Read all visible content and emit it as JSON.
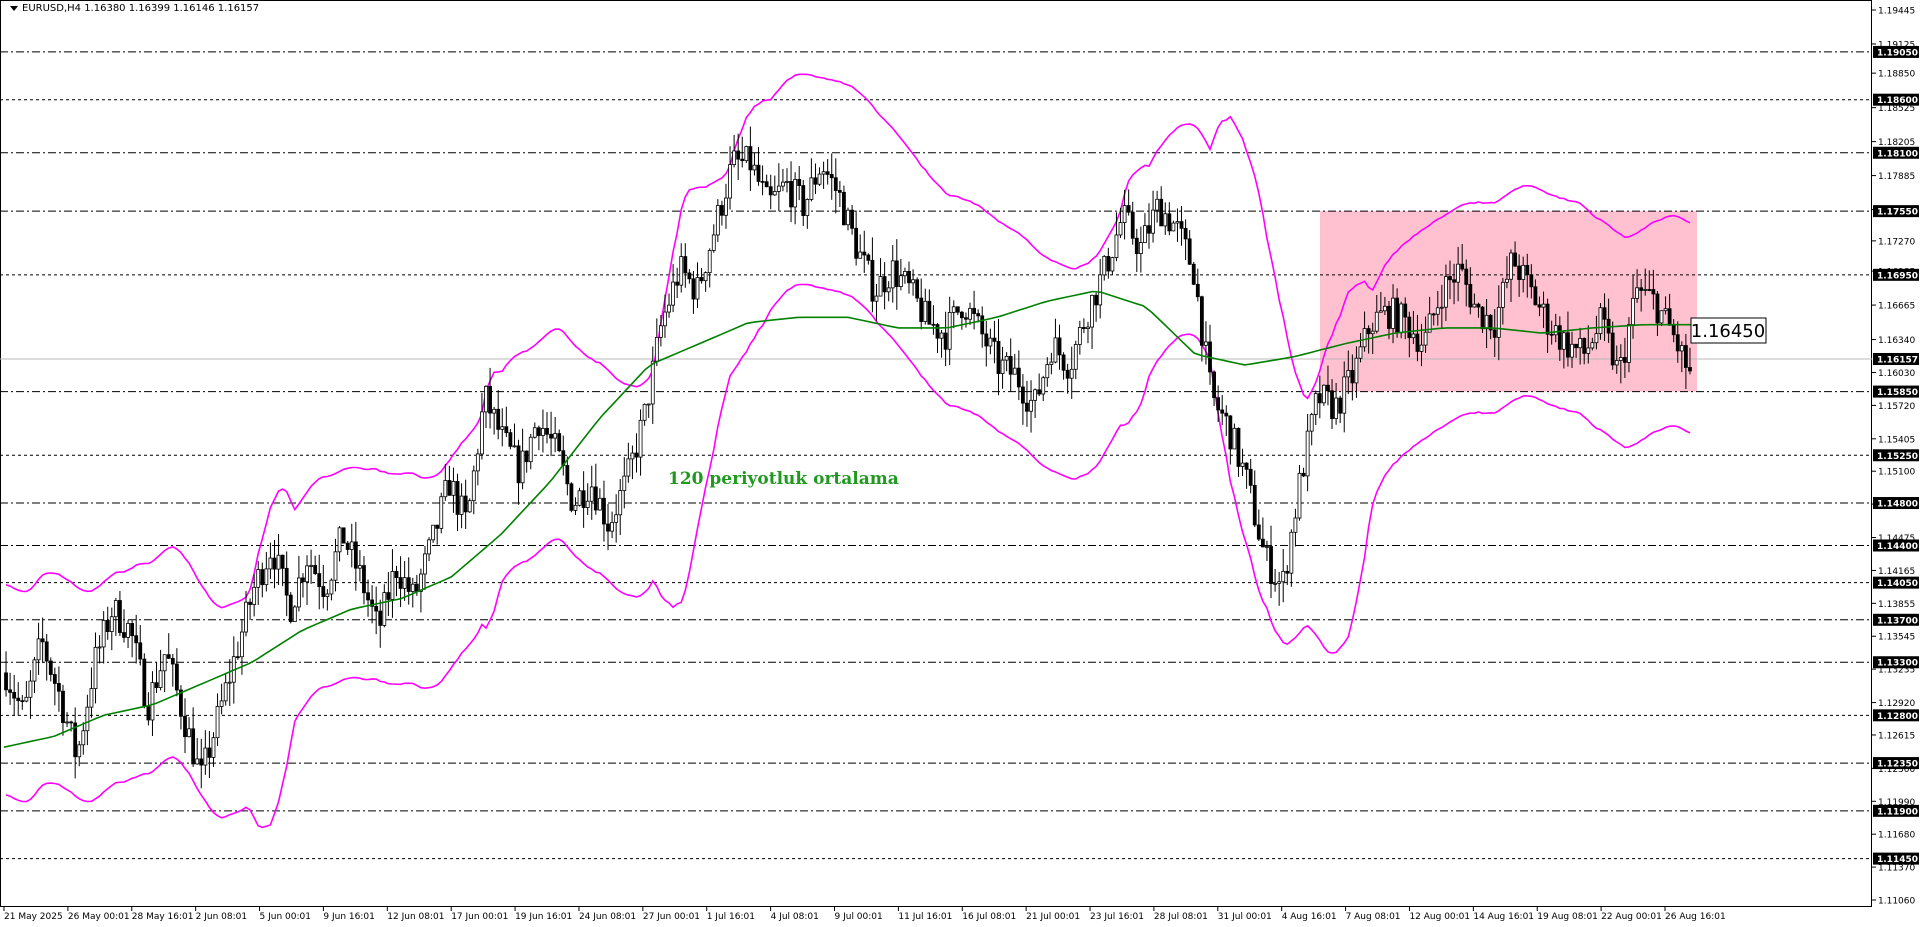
{
  "header": {
    "symbol_line": "EURUSD,H4  1.16380 1.16399 1.16146 1.16157"
  },
  "annotations": {
    "ma_label": "120 periyotluk ortalama",
    "price_callout": "1.16450"
  },
  "colors": {
    "background": "#ffffff",
    "candles": "#000000",
    "bollinger": "#ff00ff",
    "moving_average": "#008000",
    "range_box": "#ffb6c8",
    "level_lines": "#000000"
  },
  "chart_data": {
    "type": "candlestick",
    "symbol": "EURUSD",
    "timeframe": "H4",
    "ohlc_last": {
      "open": 1.1638,
      "high": 1.16399,
      "low": 1.16146,
      "close": 1.16157
    },
    "ylim": [
      1.1106,
      1.19445
    ],
    "y_ticks": [
      "1.19445",
      "1.19125",
      "1.18850",
      "1.18525",
      "1.18205",
      "1.17885",
      "1.17565",
      "1.17270",
      "1.16985",
      "1.16665",
      "1.16340",
      "1.16030",
      "1.15720",
      "1.15405",
      "1.15100",
      "1.14790",
      "1.14475",
      "1.14165",
      "1.13855",
      "1.13545",
      "1.13235",
      "1.12920",
      "1.12615",
      "1.12300",
      "1.11990",
      "1.11680",
      "1.11370",
      "1.11060"
    ],
    "horizontal_levels": [
      "1.19050",
      "1.18600",
      "1.18100",
      "1.17550",
      "1.16950",
      "1.16157",
      "1.15850",
      "1.15250",
      "1.14800",
      "1.14400",
      "1.14050",
      "1.13700",
      "1.13300",
      "1.12800",
      "1.12350",
      "1.11900",
      "1.11450"
    ],
    "current_price": "1.16157",
    "x_ticks": [
      "21 May 2025",
      "26 May 00:01",
      "28 May 16:01",
      "2 Jun 08:01",
      "5 Jun 00:01",
      "9 Jun 16:01",
      "12 Jun 08:01",
      "17 Jun 00:01",
      "19 Jun 16:01",
      "24 Jun 08:01",
      "27 Jun 00:01",
      "1 Jul 16:01",
      "4 Jul 08:01",
      "9 Jul 00:01",
      "11 Jul 16:01",
      "16 Jul 08:01",
      "21 Jul 00:01",
      "23 Jul 16:01",
      "28 Jul 08:01",
      "31 Jul 00:01",
      "4 Aug 16:01",
      "7 Aug 08:01",
      "12 Aug 00:01",
      "14 Aug 16:01",
      "19 Aug 08:01",
      "22 Aug 00:01",
      "26 Aug 16:01"
    ],
    "price_path": [
      1.132,
      1.128,
      1.135,
      1.13,
      1.124,
      1.133,
      1.138,
      1.136,
      1.129,
      1.134,
      1.128,
      1.122,
      1.128,
      1.134,
      1.14,
      1.144,
      1.138,
      1.143,
      1.14,
      1.145,
      1.141,
      1.136,
      1.142,
      1.139,
      1.144,
      1.15,
      1.146,
      1.158,
      1.154,
      1.151,
      1.156,
      1.153,
      1.148,
      1.15,
      1.146,
      1.15,
      1.156,
      1.165,
      1.17,
      1.168,
      1.174,
      1.18,
      1.18,
      1.176,
      1.178,
      1.176,
      1.18,
      1.177,
      1.172,
      1.168,
      1.17,
      1.168,
      1.165,
      1.164,
      1.167,
      1.164,
      1.161,
      1.16,
      1.157,
      1.163,
      1.161,
      1.166,
      1.17,
      1.175,
      1.172,
      1.176,
      1.174,
      1.17,
      1.158,
      1.155,
      1.15,
      1.143,
      1.14,
      1.15,
      1.158,
      1.157,
      1.16,
      1.165,
      1.166,
      1.165,
      1.163,
      1.168,
      1.17,
      1.166,
      1.165,
      1.171,
      1.168,
      1.165,
      1.163,
      1.162,
      1.165,
      1.16,
      1.168,
      1.167,
      1.164,
      1.16
    ],
    "moving_average_path": [
      1.125,
      1.126,
      1.128,
      1.129,
      1.131,
      1.133,
      1.136,
      1.138,
      1.139,
      1.141,
      1.145,
      1.15,
      1.156,
      1.161,
      1.163,
      1.165,
      1.1655,
      1.1655,
      1.1645,
      1.1645,
      1.1655,
      1.167,
      1.168,
      1.1665,
      1.162,
      1.161,
      1.1618,
      1.163,
      1.164,
      1.1645,
      1.1645,
      1.164,
      1.1645,
      1.1648,
      1.1648
    ],
    "range_box": {
      "top": "1.17550",
      "bottom": "1.15850",
      "from": "4 Aug 16:01",
      "to": "26 Aug 16:01"
    }
  }
}
